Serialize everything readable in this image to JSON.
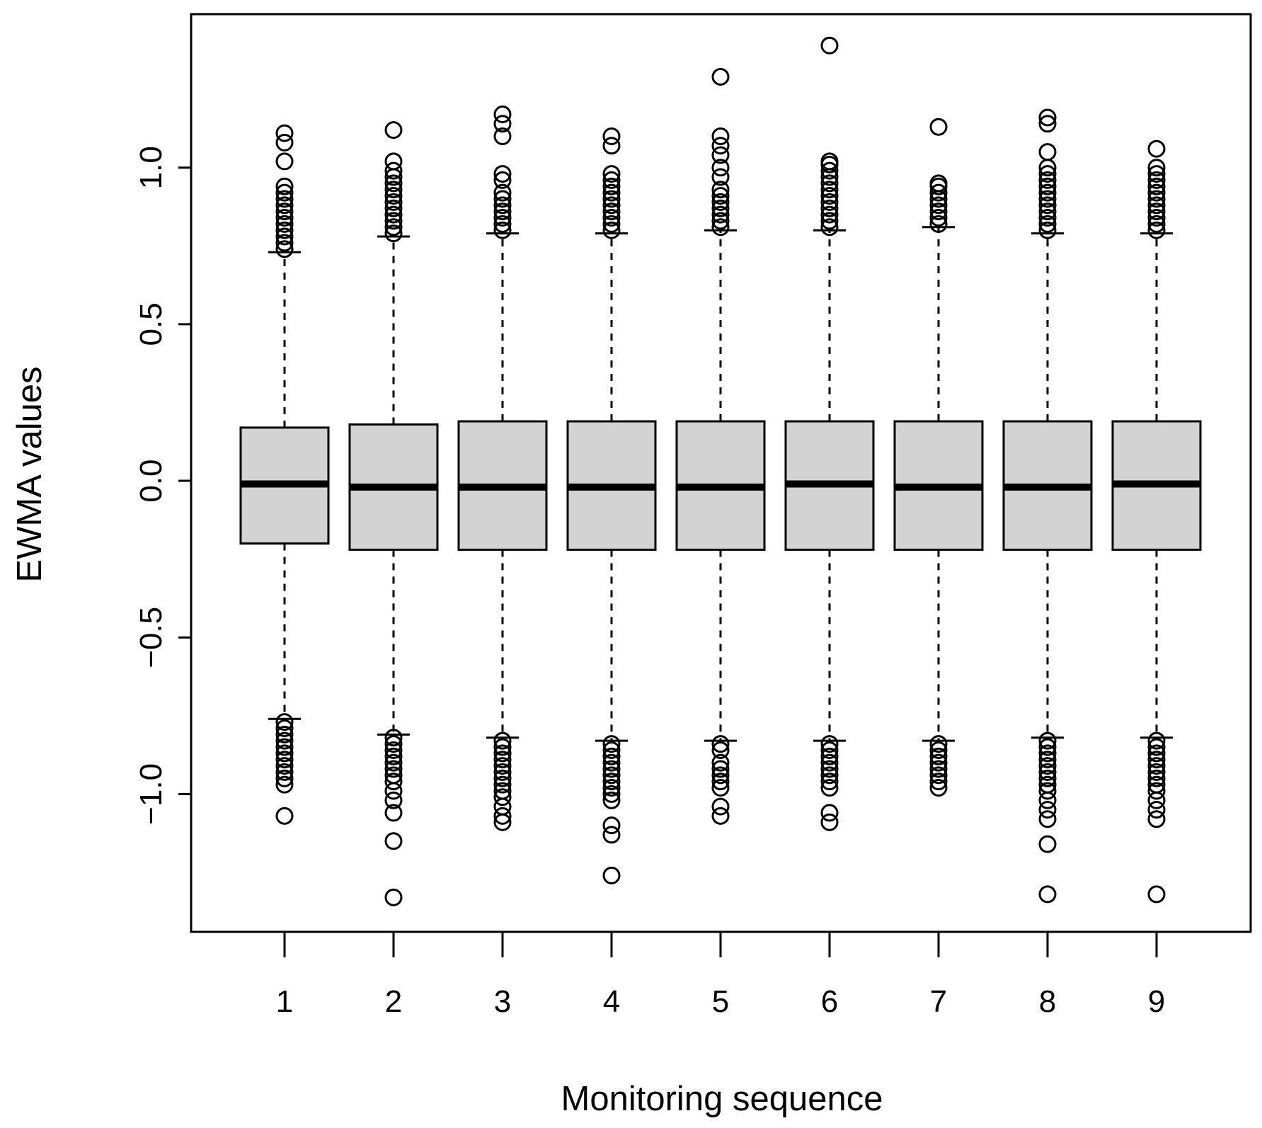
{
  "chart_data": {
    "type": "boxplot",
    "xlabel": "Monitoring sequence",
    "ylabel": "EWMA values",
    "categories": [
      "1",
      "2",
      "3",
      "4",
      "5",
      "6",
      "7",
      "8",
      "9"
    ],
    "ylim": [
      -1.44,
      1.49
    ],
    "yticks": [
      -1.0,
      -0.5,
      0.0,
      0.5,
      1.0
    ],
    "ytick_labels": [
      "−1.0",
      "−0.5",
      "0.0",
      "0.5",
      "1.0"
    ],
    "box_fill": "#d3d3d3",
    "grid": false,
    "boxes": [
      {
        "label": "1",
        "q1": -0.2,
        "median": -0.01,
        "q3": 0.17,
        "whisker_low": -0.76,
        "whisker_high": 0.73,
        "outliers_high": [
          0.74,
          0.76,
          0.78,
          0.8,
          0.82,
          0.84,
          0.86,
          0.88,
          0.9,
          0.92,
          0.94,
          1.02,
          1.08,
          1.11
        ],
        "outliers_low": [
          -0.77,
          -0.79,
          -0.81,
          -0.83,
          -0.85,
          -0.87,
          -0.89,
          -0.91,
          -0.93,
          -0.95,
          -0.97,
          -1.07
        ]
      },
      {
        "label": "2",
        "q1": -0.22,
        "median": -0.02,
        "q3": 0.18,
        "whisker_low": -0.81,
        "whisker_high": 0.78,
        "outliers_high": [
          0.79,
          0.81,
          0.83,
          0.85,
          0.87,
          0.89,
          0.91,
          0.93,
          0.95,
          0.97,
          0.99,
          1.02,
          1.12
        ],
        "outliers_low": [
          -0.82,
          -0.84,
          -0.86,
          -0.88,
          -0.9,
          -0.92,
          -0.94,
          -0.96,
          -0.99,
          -1.02,
          -1.06,
          -1.15,
          -1.33
        ]
      },
      {
        "label": "3",
        "q1": -0.22,
        "median": -0.02,
        "q3": 0.19,
        "whisker_low": -0.82,
        "whisker_high": 0.79,
        "outliers_high": [
          0.8,
          0.82,
          0.84,
          0.86,
          0.88,
          0.9,
          0.92,
          0.96,
          0.98,
          1.1,
          1.14,
          1.17
        ],
        "outliers_low": [
          -0.83,
          -0.85,
          -0.87,
          -0.89,
          -0.91,
          -0.93,
          -0.95,
          -0.97,
          -0.99,
          -1.01,
          -1.04,
          -1.07,
          -1.09
        ]
      },
      {
        "label": "4",
        "q1": -0.22,
        "median": -0.02,
        "q3": 0.19,
        "whisker_low": -0.83,
        "whisker_high": 0.79,
        "outliers_high": [
          0.8,
          0.82,
          0.84,
          0.86,
          0.88,
          0.9,
          0.92,
          0.94,
          0.96,
          0.98,
          1.07,
          1.1
        ],
        "outliers_low": [
          -0.84,
          -0.86,
          -0.88,
          -0.9,
          -0.92,
          -0.94,
          -0.96,
          -0.98,
          -1.0,
          -1.02,
          -1.1,
          -1.13,
          -1.26
        ]
      },
      {
        "label": "5",
        "q1": -0.22,
        "median": -0.02,
        "q3": 0.19,
        "whisker_low": -0.83,
        "whisker_high": 0.8,
        "outliers_high": [
          0.81,
          0.83,
          0.85,
          0.87,
          0.89,
          0.91,
          0.93,
          0.97,
          1.0,
          1.04,
          1.07,
          1.1,
          1.29
        ],
        "outliers_low": [
          -0.84,
          -0.86,
          -0.9,
          -0.92,
          -0.94,
          -0.96,
          -0.98,
          -1.04,
          -1.07
        ]
      },
      {
        "label": "6",
        "q1": -0.22,
        "median": -0.01,
        "q3": 0.19,
        "whisker_low": -0.83,
        "whisker_high": 0.8,
        "outliers_high": [
          0.81,
          0.83,
          0.85,
          0.87,
          0.89,
          0.91,
          0.93,
          0.95,
          0.97,
          0.99,
          1.01,
          1.02,
          1.39
        ],
        "outliers_low": [
          -0.84,
          -0.86,
          -0.88,
          -0.9,
          -0.92,
          -0.94,
          -0.96,
          -0.98,
          -1.06,
          -1.09
        ]
      },
      {
        "label": "7",
        "q1": -0.22,
        "median": -0.02,
        "q3": 0.19,
        "whisker_low": -0.83,
        "whisker_high": 0.81,
        "outliers_high": [
          0.82,
          0.84,
          0.86,
          0.88,
          0.9,
          0.92,
          0.94,
          0.95,
          1.13
        ],
        "outliers_low": [
          -0.84,
          -0.86,
          -0.88,
          -0.9,
          -0.92,
          -0.94,
          -0.96,
          -0.98
        ]
      },
      {
        "label": "8",
        "q1": -0.22,
        "median": -0.02,
        "q3": 0.19,
        "whisker_low": -0.82,
        "whisker_high": 0.79,
        "outliers_high": [
          0.8,
          0.82,
          0.84,
          0.86,
          0.88,
          0.9,
          0.92,
          0.94,
          0.96,
          0.98,
          1.0,
          1.05,
          1.14,
          1.16
        ],
        "outliers_low": [
          -0.83,
          -0.85,
          -0.87,
          -0.89,
          -0.91,
          -0.93,
          -0.95,
          -0.97,
          -0.99,
          -1.02,
          -1.05,
          -1.08,
          -1.16,
          -1.32
        ]
      },
      {
        "label": "9",
        "q1": -0.22,
        "median": -0.01,
        "q3": 0.19,
        "whisker_low": -0.82,
        "whisker_high": 0.79,
        "outliers_high": [
          0.8,
          0.82,
          0.84,
          0.86,
          0.88,
          0.9,
          0.92,
          0.94,
          0.96,
          0.98,
          1.0,
          1.06
        ],
        "outliers_low": [
          -0.83,
          -0.85,
          -0.87,
          -0.89,
          -0.91,
          -0.93,
          -0.95,
          -0.97,
          -0.99,
          -1.02,
          -1.05,
          -1.08,
          -1.32
        ]
      }
    ]
  }
}
